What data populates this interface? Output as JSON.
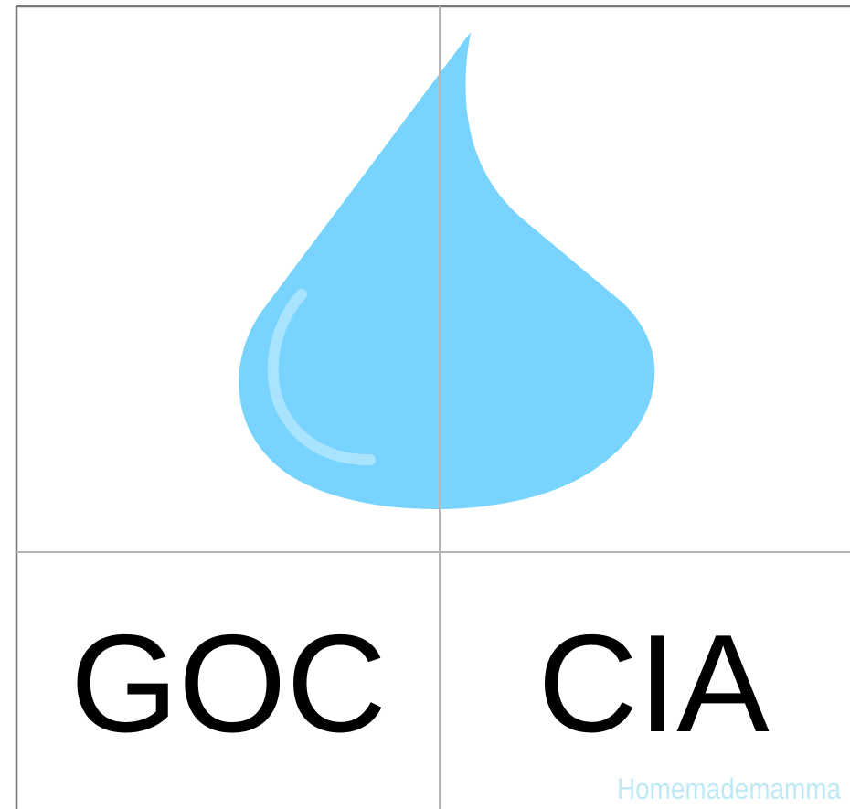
{
  "cards": [
    {
      "word": "GOC"
    },
    {
      "word": "CIA"
    }
  ],
  "watermark": "Homemademamma"
}
